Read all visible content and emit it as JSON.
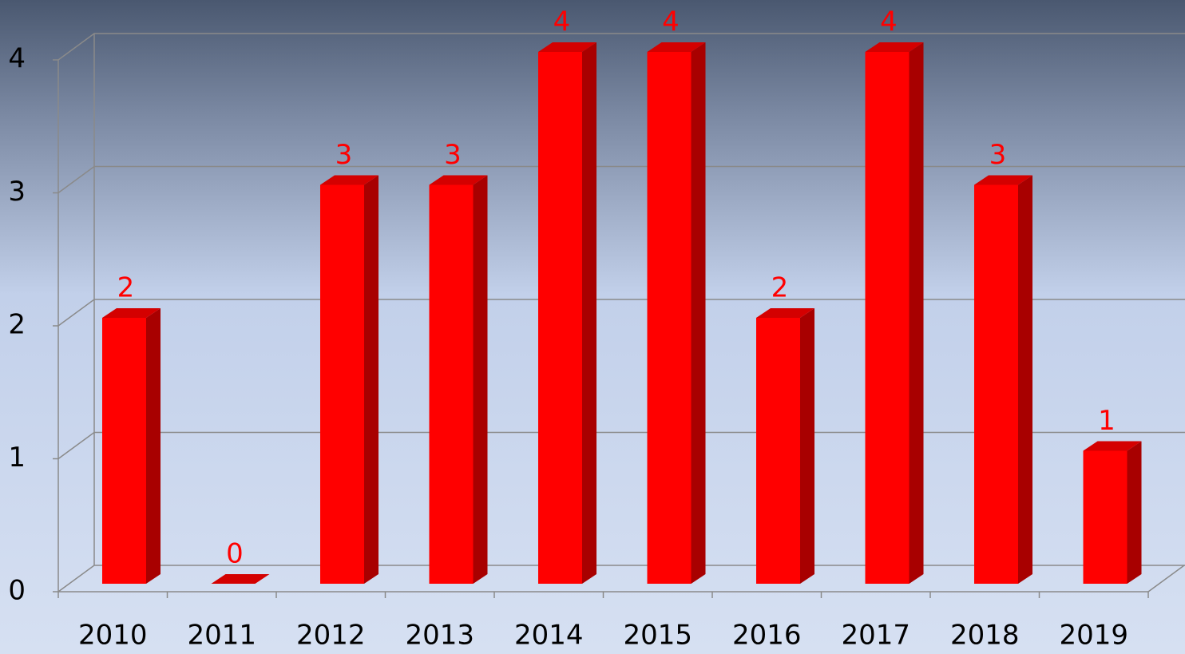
{
  "chart_data": {
    "type": "bar3d",
    "categories": [
      "2010",
      "2011",
      "2012",
      "2013",
      "2014",
      "2015",
      "2016",
      "2017",
      "2018",
      "2019"
    ],
    "values": [
      2,
      0,
      3,
      3,
      4,
      4,
      2,
      4,
      3,
      1
    ],
    "color": "#ff0000",
    "side_color": "#a80000",
    "top_color": "#d40000",
    "label_color": "#ff0000",
    "ylim": [
      0,
      4
    ],
    "yticks": [
      0,
      1,
      2,
      3,
      4
    ],
    "grid": true
  }
}
